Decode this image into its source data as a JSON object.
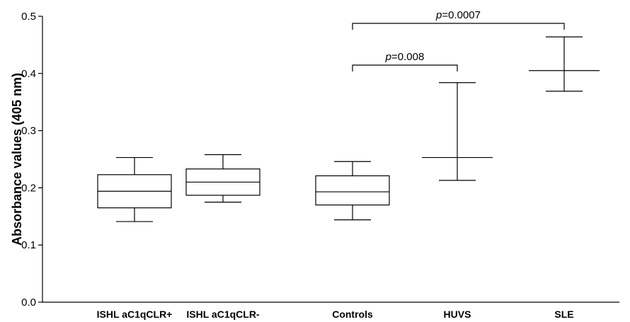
{
  "chart_data": {
    "type": "box",
    "ylabel": "Absorbance values (405 nm)",
    "xlabel": "",
    "ylim": [
      0,
      0.5
    ],
    "yticks": [
      "0.0",
      "0.1",
      "0.2",
      "0.3",
      "0.4",
      "0.5"
    ],
    "categories": [
      "ISHL aC1qCLR+",
      "ISHL aC1qCLR-",
      "Controls",
      "HUVS",
      "SLE"
    ],
    "boxes": [
      {
        "category": "ISHL aC1qCLR+",
        "min": 0.141,
        "q1": 0.165,
        "median": 0.194,
        "q3": 0.223,
        "max": 0.253,
        "style": "box"
      },
      {
        "category": "ISHL aC1qCLR-",
        "min": 0.175,
        "q1": 0.187,
        "median": 0.21,
        "q3": 0.233,
        "max": 0.258,
        "style": "box"
      },
      {
        "category": "Controls",
        "min": 0.144,
        "q1": 0.17,
        "median": 0.193,
        "q3": 0.221,
        "max": 0.246,
        "style": "box"
      },
      {
        "category": "HUVS",
        "min": 0.213,
        "median": 0.253,
        "max": 0.384,
        "style": "range"
      },
      {
        "category": "SLE",
        "min": 0.369,
        "median": 0.405,
        "max": 0.464,
        "style": "range"
      }
    ],
    "comparisons": [
      {
        "from": "Controls",
        "to": "HUVS",
        "p_symbol": "p",
        "p_value": "=0.008"
      },
      {
        "from": "Controls",
        "to": "SLE",
        "p_symbol": "p",
        "p_value": "=0.0007"
      }
    ],
    "grid": false,
    "legend": "none"
  }
}
